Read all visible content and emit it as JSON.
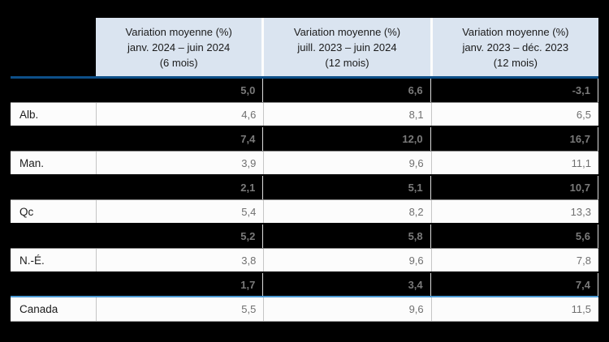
{
  "colors": {
    "page_background": "#000000",
    "header_background": "#dae4f0",
    "header_underline_blue": "#0d4f88",
    "canada_divider_blue": "#4c99d3",
    "row_background": "#fcfcfc",
    "value_grey": "#707070",
    "redacted_value_grey": "#7a7a7a"
  },
  "table": {
    "columns": [
      {
        "lines": [
          "Variation moyenne (%)",
          "janv. 2024 – juin 2024",
          "(6 mois)"
        ]
      },
      {
        "lines": [
          "Variation moyenne (%)",
          "juill. 2023 – juin 2024",
          "(12 mois)"
        ]
      },
      {
        "lines": [
          "Variation moyenne (%)",
          "janv. 2023 – déc. 2023",
          "(12 mois)"
        ]
      }
    ],
    "rows": [
      {
        "label": "",
        "type": "redacted",
        "values": [
          "5,0",
          "6,6",
          "-3,1"
        ]
      },
      {
        "label": "Alb.",
        "type": "normal",
        "values": [
          "4,6",
          "8,1",
          "6,5"
        ]
      },
      {
        "label": "",
        "type": "redacted",
        "values": [
          "7,4",
          "12,0",
          "16,7"
        ]
      },
      {
        "label": "Man.",
        "type": "normal",
        "values": [
          "3,9",
          "9,6",
          "11,1"
        ]
      },
      {
        "label": "",
        "type": "redacted",
        "values": [
          "2,1",
          "5,1",
          "10,7"
        ]
      },
      {
        "label": "Qc",
        "type": "normal",
        "values": [
          "5,4",
          "8,2",
          "13,3"
        ]
      },
      {
        "label": "",
        "type": "redacted",
        "values": [
          "5,2",
          "5,8",
          "5,6"
        ]
      },
      {
        "label": "N.-É.",
        "type": "normal",
        "values": [
          "3,8",
          "9,6",
          "7,8"
        ]
      },
      {
        "label": "",
        "type": "redacted",
        "values": [
          "1,7",
          "3,4",
          "7,4"
        ]
      },
      {
        "label": "Canada",
        "type": "normal",
        "values": [
          "5,5",
          "9,6",
          "11,5"
        ]
      }
    ]
  },
  "chart_data": {
    "type": "table",
    "columns": [
      "",
      "Variation moyenne (%) janv. 2024 – juin 2024 (6 mois)",
      "Variation moyenne (%) juill. 2023 – juin 2024 (12 mois)",
      "Variation moyenne (%) janv. 2023 – déc. 2023 (12 mois)"
    ],
    "rows": [
      {
        "label": "",
        "hidden": true,
        "values": [
          5.0,
          6.6,
          -3.1
        ]
      },
      {
        "label": "Alb.",
        "hidden": false,
        "values": [
          4.6,
          8.1,
          6.5
        ]
      },
      {
        "label": "",
        "hidden": true,
        "values": [
          7.4,
          12.0,
          16.7
        ]
      },
      {
        "label": "Man.",
        "hidden": false,
        "values": [
          3.9,
          9.6,
          11.1
        ]
      },
      {
        "label": "",
        "hidden": true,
        "values": [
          2.1,
          5.1,
          10.7
        ]
      },
      {
        "label": "Qc",
        "hidden": false,
        "values": [
          5.4,
          8.2,
          13.3
        ]
      },
      {
        "label": "",
        "hidden": true,
        "values": [
          5.2,
          5.8,
          5.6
        ]
      },
      {
        "label": "N.-É.",
        "hidden": false,
        "values": [
          3.8,
          9.6,
          7.8
        ]
      },
      {
        "label": "",
        "hidden": true,
        "values": [
          1.7,
          3.4,
          7.4
        ]
      },
      {
        "label": "Canada",
        "hidden": false,
        "values": [
          5.5,
          9.6,
          11.5
        ]
      }
    ]
  }
}
